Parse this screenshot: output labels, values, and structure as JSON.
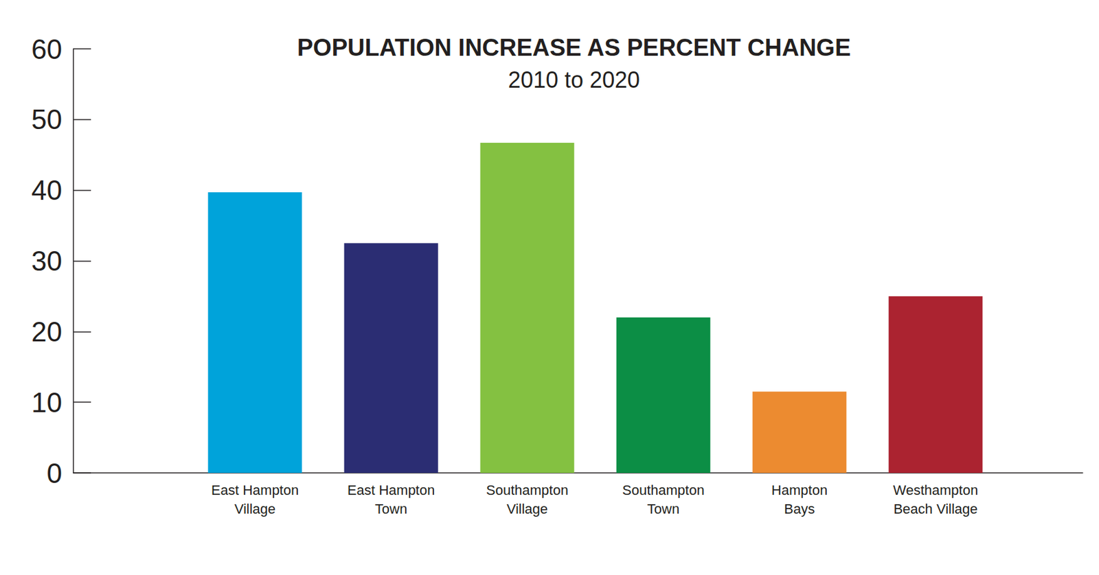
{
  "chart_data": {
    "type": "bar",
    "title": "POPULATION INCREASE AS PERCENT CHANGE",
    "subtitle": "2010 to 2020",
    "categories": [
      "East Hampton\nVillage",
      "East Hampton\nTown",
      "Southampton\nVillage",
      "Southampton\nTown",
      "Hampton\nBays",
      "Westhampton\nBeach Village"
    ],
    "values": [
      39.7,
      32.5,
      46.7,
      22.0,
      11.5,
      25.0
    ],
    "colors": [
      "#00a3da",
      "#2b2d73",
      "#84c141",
      "#0c8e45",
      "#ec8b30",
      "#ab2330"
    ],
    "ylim": [
      0,
      60
    ],
    "yticks": [
      0,
      10,
      20,
      30,
      40,
      50,
      60
    ],
    "grid": false
  }
}
